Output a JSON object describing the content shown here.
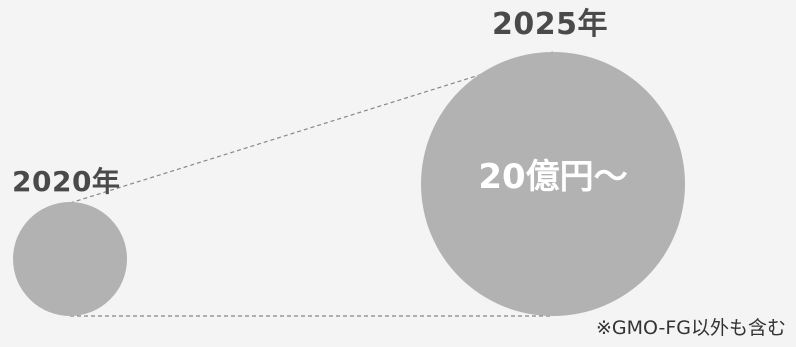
{
  "diagram": {
    "from_year_label": "2020年",
    "to_year_label": "2025年",
    "to_value_label": "20億円〜",
    "footnote": "※GMO-FG以外も含む",
    "colors": {
      "background": "#f3f4f3",
      "circle_fill": "#b2b2b2",
      "year_text": "#4a4a4a",
      "value_text": "#ffffff",
      "connector_line": "#888888",
      "footnote_text": "#333333"
    }
  }
}
